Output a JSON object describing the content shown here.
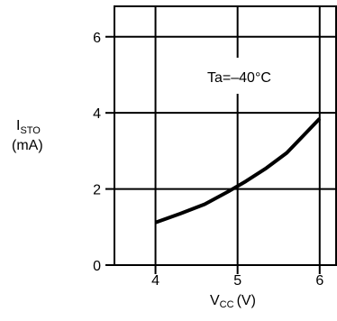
{
  "chart_data": {
    "type": "line",
    "title": "",
    "xlabel": {
      "main": "V",
      "sub": "CC",
      "unit": "(V)"
    },
    "ylabel": {
      "main": "I",
      "sub": "STO",
      "unit": "(mA)"
    },
    "xlim": [
      3.5,
      6.2
    ],
    "ylim": [
      0,
      6.8
    ],
    "x_ticks": [
      4,
      5,
      6
    ],
    "y_ticks": [
      0,
      2,
      4,
      6
    ],
    "x_tick_labels": [
      "4",
      "5",
      "6"
    ],
    "y_tick_labels": [
      "0",
      "2",
      "4",
      "6"
    ],
    "grid": true,
    "annotation": "Ta=–40°C",
    "series": [
      {
        "x": [
          4.0,
          4.3,
          4.6,
          4.9,
          5.1,
          5.35,
          5.6,
          5.8,
          6.0
        ],
        "values": [
          1.12,
          1.35,
          1.6,
          1.95,
          2.2,
          2.55,
          2.95,
          3.4,
          3.85
        ]
      }
    ],
    "colors": {
      "line": "#000000",
      "grid": "#000000",
      "axis": "#000000"
    }
  }
}
